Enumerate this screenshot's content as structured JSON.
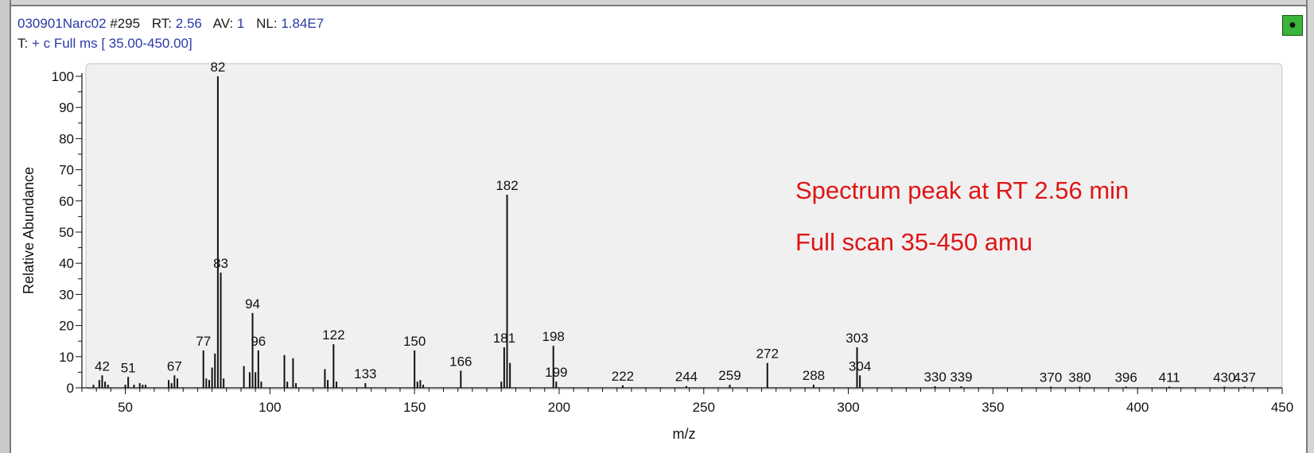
{
  "header": {
    "file": "030901Narc02",
    "scan": "#295",
    "rt_label": "RT:",
    "rt_value": "2.56",
    "av_label": "AV:",
    "av_value": "1",
    "nl_label": "NL:",
    "nl_value": "1.84E7",
    "filter_label": "T:",
    "filter_value": "+ c Full ms [ 35.00-450.00]"
  },
  "annotations": [
    "Spectrum peak at RT 2.56 min",
    "Full scan 35-450 amu"
  ],
  "colors": {
    "annotation": "#e01515",
    "header_blue": "#2a3aa8",
    "plot_bg": "#f0f0f0",
    "pin": "#3ab43a"
  },
  "pin_icon": "pin-icon",
  "chart_data": {
    "type": "bar",
    "xlabel": "m/z",
    "ylabel": "Relative Abundance",
    "xlim": [
      35,
      450
    ],
    "ylim": [
      0,
      100
    ],
    "x_ticks": [
      50,
      100,
      150,
      200,
      250,
      300,
      350,
      400,
      450
    ],
    "y_ticks": [
      0,
      10,
      20,
      30,
      40,
      50,
      60,
      70,
      80,
      90,
      100
    ],
    "grid": false,
    "peaks": [
      {
        "mz": 39,
        "intensity": 1
      },
      {
        "mz": 41,
        "intensity": 2.5
      },
      {
        "mz": 42,
        "intensity": 4,
        "label": "42"
      },
      {
        "mz": 43,
        "intensity": 2
      },
      {
        "mz": 44,
        "intensity": 1
      },
      {
        "mz": 50,
        "intensity": 1
      },
      {
        "mz": 51,
        "intensity": 3.5,
        "label": "51"
      },
      {
        "mz": 53,
        "intensity": 1
      },
      {
        "mz": 55,
        "intensity": 1.5
      },
      {
        "mz": 56,
        "intensity": 1
      },
      {
        "mz": 57,
        "intensity": 1
      },
      {
        "mz": 65,
        "intensity": 2.5
      },
      {
        "mz": 66,
        "intensity": 1.5
      },
      {
        "mz": 67,
        "intensity": 4,
        "label": "67"
      },
      {
        "mz": 68,
        "intensity": 3
      },
      {
        "mz": 77,
        "intensity": 12,
        "label": "77"
      },
      {
        "mz": 78,
        "intensity": 3
      },
      {
        "mz": 79,
        "intensity": 2.5
      },
      {
        "mz": 80,
        "intensity": 6.5
      },
      {
        "mz": 81,
        "intensity": 11
      },
      {
        "mz": 82,
        "intensity": 100,
        "label": "82"
      },
      {
        "mz": 83,
        "intensity": 37,
        "label": "83"
      },
      {
        "mz": 84,
        "intensity": 3
      },
      {
        "mz": 91,
        "intensity": 7
      },
      {
        "mz": 93,
        "intensity": 5
      },
      {
        "mz": 94,
        "intensity": 24,
        "label": "94"
      },
      {
        "mz": 95,
        "intensity": 5
      },
      {
        "mz": 96,
        "intensity": 12,
        "label": "96"
      },
      {
        "mz": 97,
        "intensity": 2
      },
      {
        "mz": 105,
        "intensity": 10.5
      },
      {
        "mz": 106,
        "intensity": 2
      },
      {
        "mz": 108,
        "intensity": 9.5
      },
      {
        "mz": 109,
        "intensity": 1.5
      },
      {
        "mz": 119,
        "intensity": 6
      },
      {
        "mz": 120,
        "intensity": 2.5
      },
      {
        "mz": 122,
        "intensity": 14,
        "label": "122"
      },
      {
        "mz": 123,
        "intensity": 2
      },
      {
        "mz": 133,
        "intensity": 1.5,
        "label": "133"
      },
      {
        "mz": 150,
        "intensity": 12,
        "label": "150"
      },
      {
        "mz": 151,
        "intensity": 2
      },
      {
        "mz": 152,
        "intensity": 2.5
      },
      {
        "mz": 153,
        "intensity": 1
      },
      {
        "mz": 166,
        "intensity": 5.5,
        "label": "166"
      },
      {
        "mz": 180,
        "intensity": 2
      },
      {
        "mz": 181,
        "intensity": 13,
        "label": "181"
      },
      {
        "mz": 182,
        "intensity": 62,
        "label": "182"
      },
      {
        "mz": 183,
        "intensity": 8
      },
      {
        "mz": 198,
        "intensity": 13.5,
        "label": "198"
      },
      {
        "mz": 199,
        "intensity": 2,
        "label": "199"
      },
      {
        "mz": 222,
        "intensity": 0.8,
        "label": "222"
      },
      {
        "mz": 244,
        "intensity": 0.6,
        "label": "244"
      },
      {
        "mz": 259,
        "intensity": 1,
        "label": "259"
      },
      {
        "mz": 272,
        "intensity": 8,
        "label": "272"
      },
      {
        "mz": 288,
        "intensity": 1,
        "label": "288"
      },
      {
        "mz": 303,
        "intensity": 13,
        "label": "303"
      },
      {
        "mz": 304,
        "intensity": 4,
        "label": "304"
      },
      {
        "mz": 330,
        "intensity": 0.5,
        "label": "330"
      },
      {
        "mz": 339,
        "intensity": 0.5,
        "label": "339"
      },
      {
        "mz": 370,
        "intensity": 0.4,
        "label": "370"
      },
      {
        "mz": 380,
        "intensity": 0.4,
        "label": "380"
      },
      {
        "mz": 396,
        "intensity": 0.4,
        "label": "396"
      },
      {
        "mz": 411,
        "intensity": 0.4,
        "label": "411"
      },
      {
        "mz": 430,
        "intensity": 0.4,
        "label": "430"
      },
      {
        "mz": 437,
        "intensity": 0.4,
        "label": "437"
      }
    ]
  }
}
